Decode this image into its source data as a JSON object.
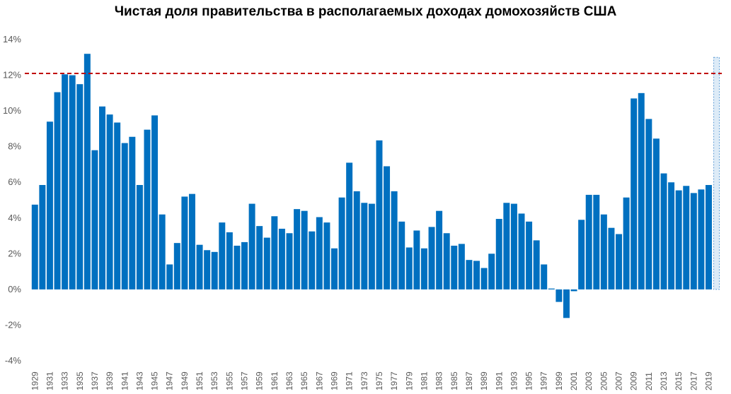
{
  "chart_data": {
    "type": "bar",
    "title": "Чистая доля правительства в располагаемых доходах домохозяйств США",
    "xlabel": "",
    "ylabel": "",
    "ylim": [
      -4,
      14
    ],
    "y_ticks": [
      "-4%",
      "-2%",
      "0%",
      "2%",
      "4%",
      "6%",
      "8%",
      "10%",
      "12%",
      "14%"
    ],
    "y_tick_values": [
      -4,
      -2,
      0,
      2,
      4,
      6,
      8,
      10,
      12,
      14
    ],
    "x_tick_labels": [
      "1929",
      "1931",
      "1933",
      "1935",
      "1937",
      "1939",
      "1941",
      "1943",
      "1945",
      "1947",
      "1949",
      "1951",
      "1953",
      "1955",
      "1957",
      "1959",
      "1961",
      "1963",
      "1965",
      "1967",
      "1969",
      "1971",
      "1973",
      "1975",
      "1977",
      "1979",
      "1981",
      "1983",
      "1985",
      "1987",
      "1989",
      "1991",
      "1993",
      "1995",
      "1997",
      "1999",
      "2001",
      "2003",
      "2005",
      "2007",
      "2009",
      "2011",
      "2013",
      "2015",
      "2017",
      "2019"
    ],
    "grid": false,
    "legend": "none",
    "bar_color": "#0070C0",
    "reference_line": {
      "value": 12.1,
      "style": "dashed",
      "color": "#C00000"
    },
    "highlight_bar": {
      "value": 13.0,
      "style": "dashed-outline",
      "fill": "#DDEBF7",
      "stroke": "#5B9BD5"
    },
    "categories": [
      "1929",
      "1930",
      "1931",
      "1932",
      "1933",
      "1934",
      "1935",
      "1936",
      "1937",
      "1938",
      "1939",
      "1940",
      "1941",
      "1942",
      "1943",
      "1944",
      "1945",
      "1946",
      "1947",
      "1948",
      "1949",
      "1950",
      "1951",
      "1952",
      "1953",
      "1954",
      "1955",
      "1956",
      "1957",
      "1958",
      "1959",
      "1960",
      "1961",
      "1962",
      "1963",
      "1964",
      "1965",
      "1966",
      "1967",
      "1968",
      "1969",
      "1970",
      "1971",
      "1972",
      "1973",
      "1974",
      "1975",
      "1976",
      "1977",
      "1978",
      "1979",
      "1980",
      "1981",
      "1982",
      "1983",
      "1984",
      "1985",
      "1986",
      "1987",
      "1988",
      "1989",
      "1990",
      "1991",
      "1992",
      "1993",
      "1994",
      "1995",
      "1996",
      "1997",
      "1998",
      "1999",
      "2000",
      "2001",
      "2002",
      "2003",
      "2004",
      "2005",
      "2006",
      "2007",
      "2008",
      "2009",
      "2010",
      "2011",
      "2012",
      "2013",
      "2014",
      "2015",
      "2016",
      "2017",
      "2018",
      "2019"
    ],
    "values": [
      4.75,
      5.85,
      9.4,
      11.05,
      12.05,
      12.0,
      11.5,
      13.2,
      7.8,
      10.25,
      9.8,
      9.35,
      8.2,
      8.55,
      5.85,
      8.95,
      9.75,
      4.2,
      1.4,
      2.6,
      5.2,
      5.35,
      2.5,
      2.2,
      2.1,
      3.75,
      3.2,
      2.45,
      2.65,
      4.8,
      3.55,
      2.9,
      4.1,
      3.4,
      3.15,
      4.5,
      4.4,
      3.25,
      4.05,
      3.75,
      2.3,
      5.15,
      7.1,
      5.5,
      4.85,
      4.8,
      8.35,
      6.9,
      5.5,
      3.8,
      2.35,
      3.3,
      2.3,
      3.5,
      4.4,
      3.15,
      2.45,
      2.55,
      1.65,
      1.6,
      1.2,
      2.0,
      3.95,
      4.85,
      4.8,
      4.25,
      3.8,
      2.75,
      1.4,
      0.05,
      -0.7,
      -1.6,
      -0.1,
      3.9,
      5.3,
      5.3,
      4.2,
      3.45,
      3.1,
      5.15,
      10.7,
      11.0,
      9.55,
      8.45,
      6.5,
      6.0,
      5.55,
      5.8,
      5.4,
      5.6,
      5.85
    ]
  }
}
